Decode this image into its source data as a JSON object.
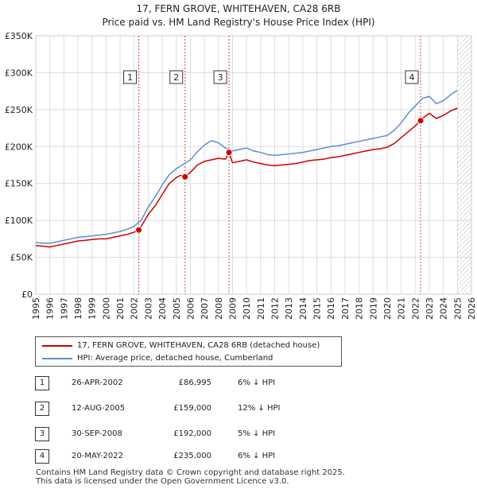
{
  "chart_data": {
    "type": "line",
    "title": "17, FERN GROVE, WHITEHAVEN, CA28 6RB",
    "subtitle": "Price paid vs. HM Land Registry's House Price Index (HPI)",
    "xlim": [
      1995,
      2026
    ],
    "ylim": [
      0,
      350000
    ],
    "yticks": [
      0,
      50000,
      100000,
      150000,
      200000,
      250000,
      300000,
      350000
    ],
    "ytick_labels": [
      "£0",
      "£50K",
      "£100K",
      "£150K",
      "£200K",
      "£250K",
      "£300K",
      "£350K"
    ],
    "xticks": [
      1995,
      1996,
      1997,
      1998,
      1999,
      2000,
      2001,
      2002,
      2003,
      2004,
      2005,
      2006,
      2007,
      2008,
      2009,
      2010,
      2011,
      2012,
      2013,
      2014,
      2015,
      2016,
      2017,
      2018,
      2019,
      2020,
      2021,
      2022,
      2023,
      2024,
      2025,
      2026
    ],
    "xtick_labels": [
      "1995",
      "1996",
      "1997",
      "1998",
      "1999",
      "2000",
      "2001",
      "2002",
      "2003",
      "2004",
      "2005",
      "2006",
      "2007",
      "2008",
      "2009",
      "2010",
      "2011",
      "2012",
      "2013",
      "2014",
      "2015",
      "2016",
      "2017",
      "2018",
      "2019",
      "2020",
      "2021",
      "2022",
      "2023",
      "2024",
      "2025",
      "2026"
    ],
    "forecast_start": 2025.0,
    "series": [
      {
        "name": "17, FERN GROVE, WHITEHAVEN, CA28 6RB (detached house)",
        "color": "#cc0000",
        "x": [
          1995.0,
          1995.5,
          1996.0,
          1996.5,
          1997.0,
          1997.5,
          1998.0,
          1998.5,
          1999.0,
          1999.5,
          2000.0,
          2000.5,
          2001.0,
          2001.5,
          2002.0,
          2002.33,
          2002.5,
          2003.0,
          2003.5,
          2004.0,
          2004.5,
          2005.0,
          2005.3,
          2005.62,
          2006.0,
          2006.5,
          2007.0,
          2007.5,
          2008.0,
          2008.5,
          2008.75,
          2009.0,
          2009.5,
          2010.0,
          2010.5,
          2011.0,
          2011.5,
          2012.0,
          2012.5,
          2013.0,
          2013.5,
          2014.0,
          2014.5,
          2015.0,
          2015.5,
          2016.0,
          2016.5,
          2017.0,
          2017.5,
          2018.0,
          2018.5,
          2019.0,
          2019.5,
          2020.0,
          2020.5,
          2021.0,
          2021.5,
          2022.0,
          2022.38,
          2022.5,
          2023.0,
          2023.5,
          2024.0,
          2024.5,
          2025.0
        ],
        "values": [
          66000,
          65000,
          64000,
          66000,
          68000,
          70000,
          72000,
          73000,
          74000,
          75000,
          75000,
          77000,
          79000,
          81000,
          84000,
          86995,
          92000,
          108000,
          120000,
          135000,
          150000,
          158000,
          161000,
          159000,
          165000,
          175000,
          180000,
          182000,
          184000,
          183000,
          192000,
          178000,
          180000,
          182000,
          179000,
          177000,
          175000,
          174000,
          175000,
          176000,
          177000,
          179000,
          181000,
          182000,
          183000,
          185000,
          186000,
          188000,
          190000,
          192000,
          194000,
          196000,
          197000,
          199000,
          204000,
          212000,
          220000,
          228000,
          235000,
          238000,
          245000,
          238000,
          242000,
          248000,
          252000
        ]
      },
      {
        "name": "HPI: Average price, detached house, Cumberland",
        "color": "#5b8fd4",
        "x": [
          1995.0,
          1995.5,
          1996.0,
          1996.5,
          1997.0,
          1997.5,
          1998.0,
          1998.5,
          1999.0,
          1999.5,
          2000.0,
          2000.5,
          2001.0,
          2001.5,
          2002.0,
          2002.5,
          2003.0,
          2003.5,
          2004.0,
          2004.5,
          2005.0,
          2005.5,
          2006.0,
          2006.5,
          2007.0,
          2007.5,
          2008.0,
          2008.5,
          2009.0,
          2009.5,
          2010.0,
          2010.5,
          2011.0,
          2011.5,
          2012.0,
          2012.5,
          2013.0,
          2013.5,
          2014.0,
          2014.5,
          2015.0,
          2015.5,
          2016.0,
          2016.5,
          2017.0,
          2017.5,
          2018.0,
          2018.5,
          2019.0,
          2019.5,
          2020.0,
          2020.5,
          2021.0,
          2021.5,
          2022.0,
          2022.5,
          2023.0,
          2023.5,
          2024.0,
          2024.5,
          2025.0
        ],
        "values": [
          70000,
          69000,
          69000,
          71000,
          73000,
          75000,
          77000,
          78000,
          79000,
          80000,
          81000,
          83000,
          85000,
          88000,
          92000,
          100000,
          118000,
          132000,
          148000,
          162000,
          170000,
          176000,
          182000,
          193000,
          202000,
          208000,
          205000,
          198000,
          194000,
          196000,
          198000,
          194000,
          192000,
          189000,
          188000,
          189000,
          190000,
          191000,
          192000,
          194000,
          196000,
          198000,
          200000,
          201000,
          203000,
          205000,
          207000,
          209000,
          211000,
          213000,
          215000,
          222000,
          232000,
          245000,
          255000,
          265000,
          268000,
          258000,
          262000,
          270000,
          276000
        ]
      }
    ],
    "transactions": [
      {
        "num": "1",
        "x": 2002.33,
        "value": 86995
      },
      {
        "num": "2",
        "x": 2005.62,
        "value": 159000
      },
      {
        "num": "3",
        "x": 2008.75,
        "value": 192000
      },
      {
        "num": "4",
        "x": 2022.38,
        "value": 235000
      }
    ]
  },
  "legend": {
    "property_label": "17, FERN GROVE, WHITEHAVEN, CA28 6RB (detached house)",
    "hpi_label": "HPI: Average price, detached house, Cumberland"
  },
  "table": [
    {
      "num": "1",
      "date": "26-APR-2002",
      "price": "£86,995",
      "hpi": "6% ↓ HPI"
    },
    {
      "num": "2",
      "date": "12-AUG-2005",
      "price": "£159,000",
      "hpi": "12% ↓ HPI"
    },
    {
      "num": "3",
      "date": "30-SEP-2008",
      "price": "£192,000",
      "hpi": "5% ↓ HPI"
    },
    {
      "num": "4",
      "date": "20-MAY-2022",
      "price": "£235,000",
      "hpi": "6% ↓ HPI"
    }
  ],
  "footer": {
    "line1": "Contains HM Land Registry data © Crown copyright and database right 2025.",
    "line2": "This data is licensed under the Open Government Licence v3.0."
  }
}
